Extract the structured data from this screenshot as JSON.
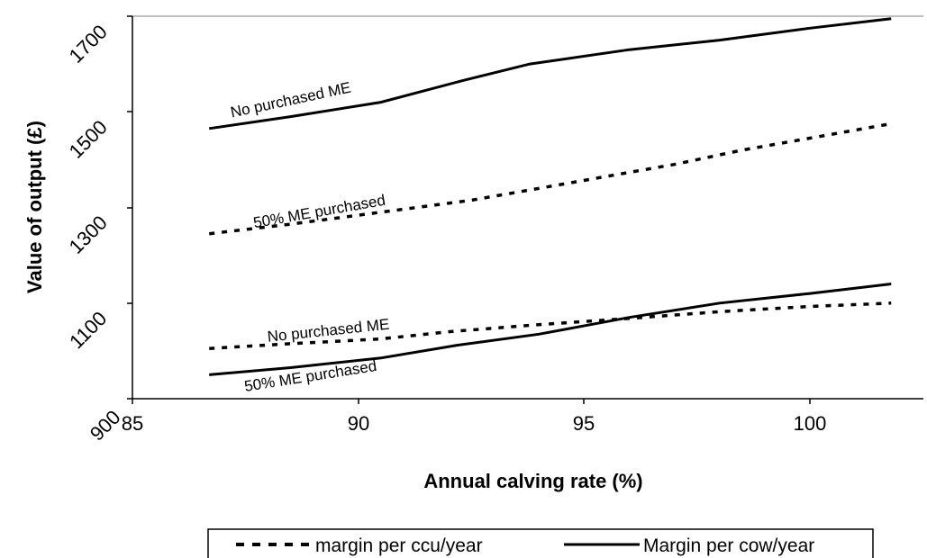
{
  "chart_data": {
    "type": "line",
    "xlabel": "Annual calving rate (%)",
    "ylabel": "Value of output (£)",
    "xlim": [
      85,
      102.5
    ],
    "ylim": [
      900,
      1700
    ],
    "x_ticks": [
      85,
      90,
      95,
      100
    ],
    "y_ticks": [
      900,
      1100,
      1300,
      1500,
      1700
    ],
    "grid": false,
    "legend_position": "bottom",
    "series": [
      {
        "name": "margin per ccu/year",
        "style": "dotted",
        "points": [
          [
            86.7,
            1005
          ],
          [
            88.5,
            1015
          ],
          [
            90.5,
            1025
          ],
          [
            92,
            1040
          ],
          [
            94,
            1055
          ],
          [
            96,
            1068
          ],
          [
            98,
            1082
          ],
          [
            100,
            1093
          ],
          [
            101.8,
            1100
          ]
        ]
      },
      {
        "name": "Margin per cow/year",
        "style": "solid",
        "points": [
          [
            86.7,
            950
          ],
          [
            88.5,
            965
          ],
          [
            90.5,
            985
          ],
          [
            92.2,
            1012
          ],
          [
            94,
            1035
          ],
          [
            96,
            1070
          ],
          [
            98,
            1100
          ],
          [
            100,
            1120
          ],
          [
            101.8,
            1140
          ]
        ]
      },
      {
        "name": "",
        "style": "dotted",
        "points": [
          [
            86.7,
            1245
          ],
          [
            88.5,
            1265
          ],
          [
            90.5,
            1290
          ],
          [
            92.5,
            1315
          ],
          [
            94,
            1340
          ],
          [
            95.5,
            1365
          ],
          [
            97,
            1390
          ],
          [
            98.5,
            1420
          ],
          [
            100,
            1445
          ],
          [
            101.8,
            1475
          ]
        ]
      },
      {
        "name": "",
        "style": "solid",
        "points": [
          [
            86.7,
            1465
          ],
          [
            88.5,
            1490
          ],
          [
            90.5,
            1520
          ],
          [
            92.3,
            1565
          ],
          [
            93.8,
            1600
          ],
          [
            96,
            1630
          ],
          [
            98,
            1650
          ],
          [
            100,
            1675
          ],
          [
            101.8,
            1695
          ]
        ]
      }
    ],
    "annotations": [
      {
        "text": "No purchased ME",
        "x": 87.2,
        "y": 1488,
        "angle": -12
      },
      {
        "text": "50% ME purchased",
        "x": 87.7,
        "y": 1257,
        "angle": -10
      },
      {
        "text": "No purchased ME",
        "x": 88.0,
        "y": 1019,
        "angle": -6
      },
      {
        "text": "50% ME purchased",
        "x": 87.5,
        "y": 915,
        "angle": -9
      }
    ]
  },
  "colors": {
    "line": "#000000",
    "background": "#ffffff",
    "frame_top": "#808080"
  }
}
